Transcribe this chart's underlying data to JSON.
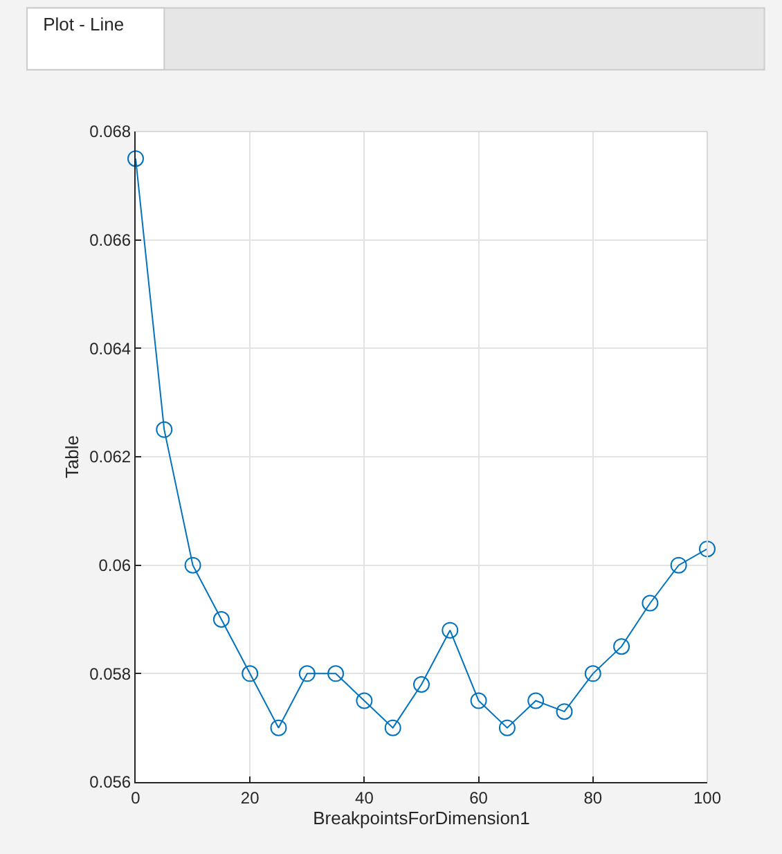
{
  "chart_data": {
    "type": "line",
    "title": "Plot - Line",
    "xlabel": "BreakpointsForDimension1",
    "ylabel": "Table",
    "x": [
      0,
      5,
      10,
      15,
      20,
      25,
      30,
      35,
      40,
      45,
      50,
      55,
      60,
      65,
      70,
      75,
      80,
      85,
      90,
      95,
      100
    ],
    "series": [
      {
        "color": "#0072bd",
        "values": [
          0.0675,
          0.0625,
          0.06,
          0.059,
          0.058,
          0.057,
          0.058,
          0.058,
          0.0575,
          0.057,
          0.0578,
          0.0588,
          0.0575,
          0.057,
          0.0575,
          0.0573,
          0.058,
          0.0585,
          0.0593,
          0.06,
          0.0603
        ]
      }
    ],
    "xlim": [
      0,
      100
    ],
    "xticks": [
      0,
      20,
      40,
      60,
      80,
      100
    ],
    "ylim": [
      0.056,
      0.068
    ],
    "yticks": [
      {
        "value": 0.056,
        "label": "0.056"
      },
      {
        "value": 0.058,
        "label": "0.058"
      },
      {
        "value": 0.06,
        "label": "0.06"
      },
      {
        "value": 0.062,
        "label": "0.062"
      },
      {
        "value": 0.064,
        "label": "0.064"
      },
      {
        "value": 0.066,
        "label": "0.066"
      },
      {
        "value": 0.068,
        "label": "0.068"
      }
    ],
    "grid": true,
    "marker": "circle",
    "line_style": "solid",
    "legend": false
  }
}
